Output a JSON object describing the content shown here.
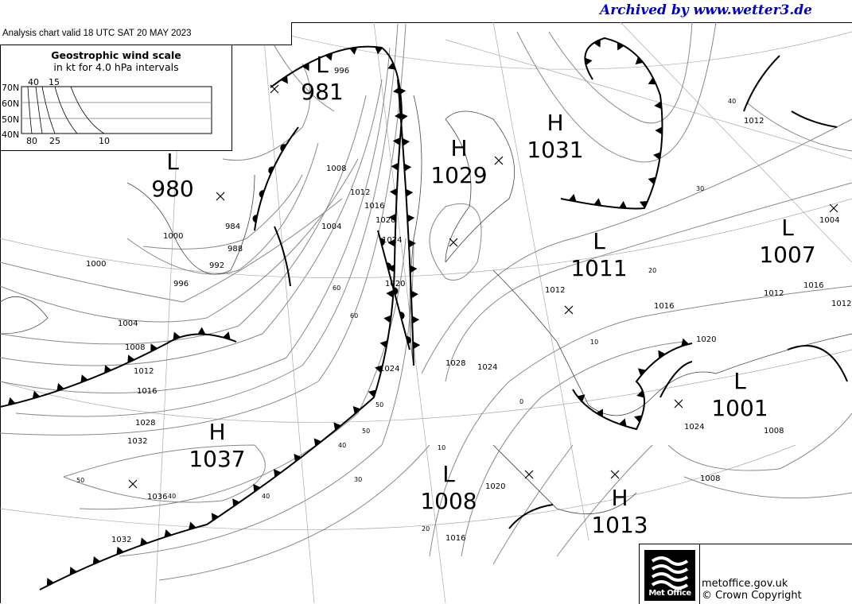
{
  "archive_credit": "Archived by www.wetter3.de",
  "chart_title": "Analysis chart  valid 18 UTC SAT 20  MAY 2023",
  "wind_scale": {
    "title": "Geostrophic wind scale",
    "subtitle": "in kt for 4.0 hPa intervals",
    "latitudes": [
      "70N",
      "60N",
      "50N",
      "40N"
    ],
    "top_labels": [
      "40",
      "15"
    ],
    "bottom_labels": [
      "80",
      "25",
      "10"
    ]
  },
  "pressure_centres": [
    {
      "type": "L",
      "value": "981"
    },
    {
      "type": "L",
      "value": "980"
    },
    {
      "type": "H",
      "value": "1029"
    },
    {
      "type": "H",
      "value": "1031"
    },
    {
      "type": "L",
      "value": "1011"
    },
    {
      "type": "L",
      "value": "1007"
    },
    {
      "type": "L",
      "value": "1001"
    },
    {
      "type": "H",
      "value": "1037"
    },
    {
      "type": "L",
      "value": "1008"
    },
    {
      "type": "H",
      "value": "1013"
    }
  ],
  "isobar_labels": [
    "996",
    "984",
    "988",
    "992",
    "996",
    "1000",
    "1004",
    "1008",
    "1012",
    "1016",
    "1020",
    "1024",
    "1028",
    "1032",
    "1036",
    "1032",
    "1000",
    "1004",
    "1008",
    "1012",
    "1016",
    "1020",
    "1024",
    "1028",
    "1024",
    "1020",
    "1016",
    "1012",
    "1016",
    "1020",
    "1024",
    "1012",
    "1008",
    "1004",
    "1012",
    "1016",
    "1012",
    "1008"
  ],
  "graticule_labels": [
    "40",
    "30",
    "20",
    "10",
    "0",
    "10",
    "20",
    "30",
    "40",
    "50",
    "60",
    "50",
    "40",
    "40",
    "50",
    "60"
  ],
  "footer": {
    "brand": "Met Office",
    "site": "metoffice.gov.uk",
    "copyright": "© Crown Copyright"
  }
}
